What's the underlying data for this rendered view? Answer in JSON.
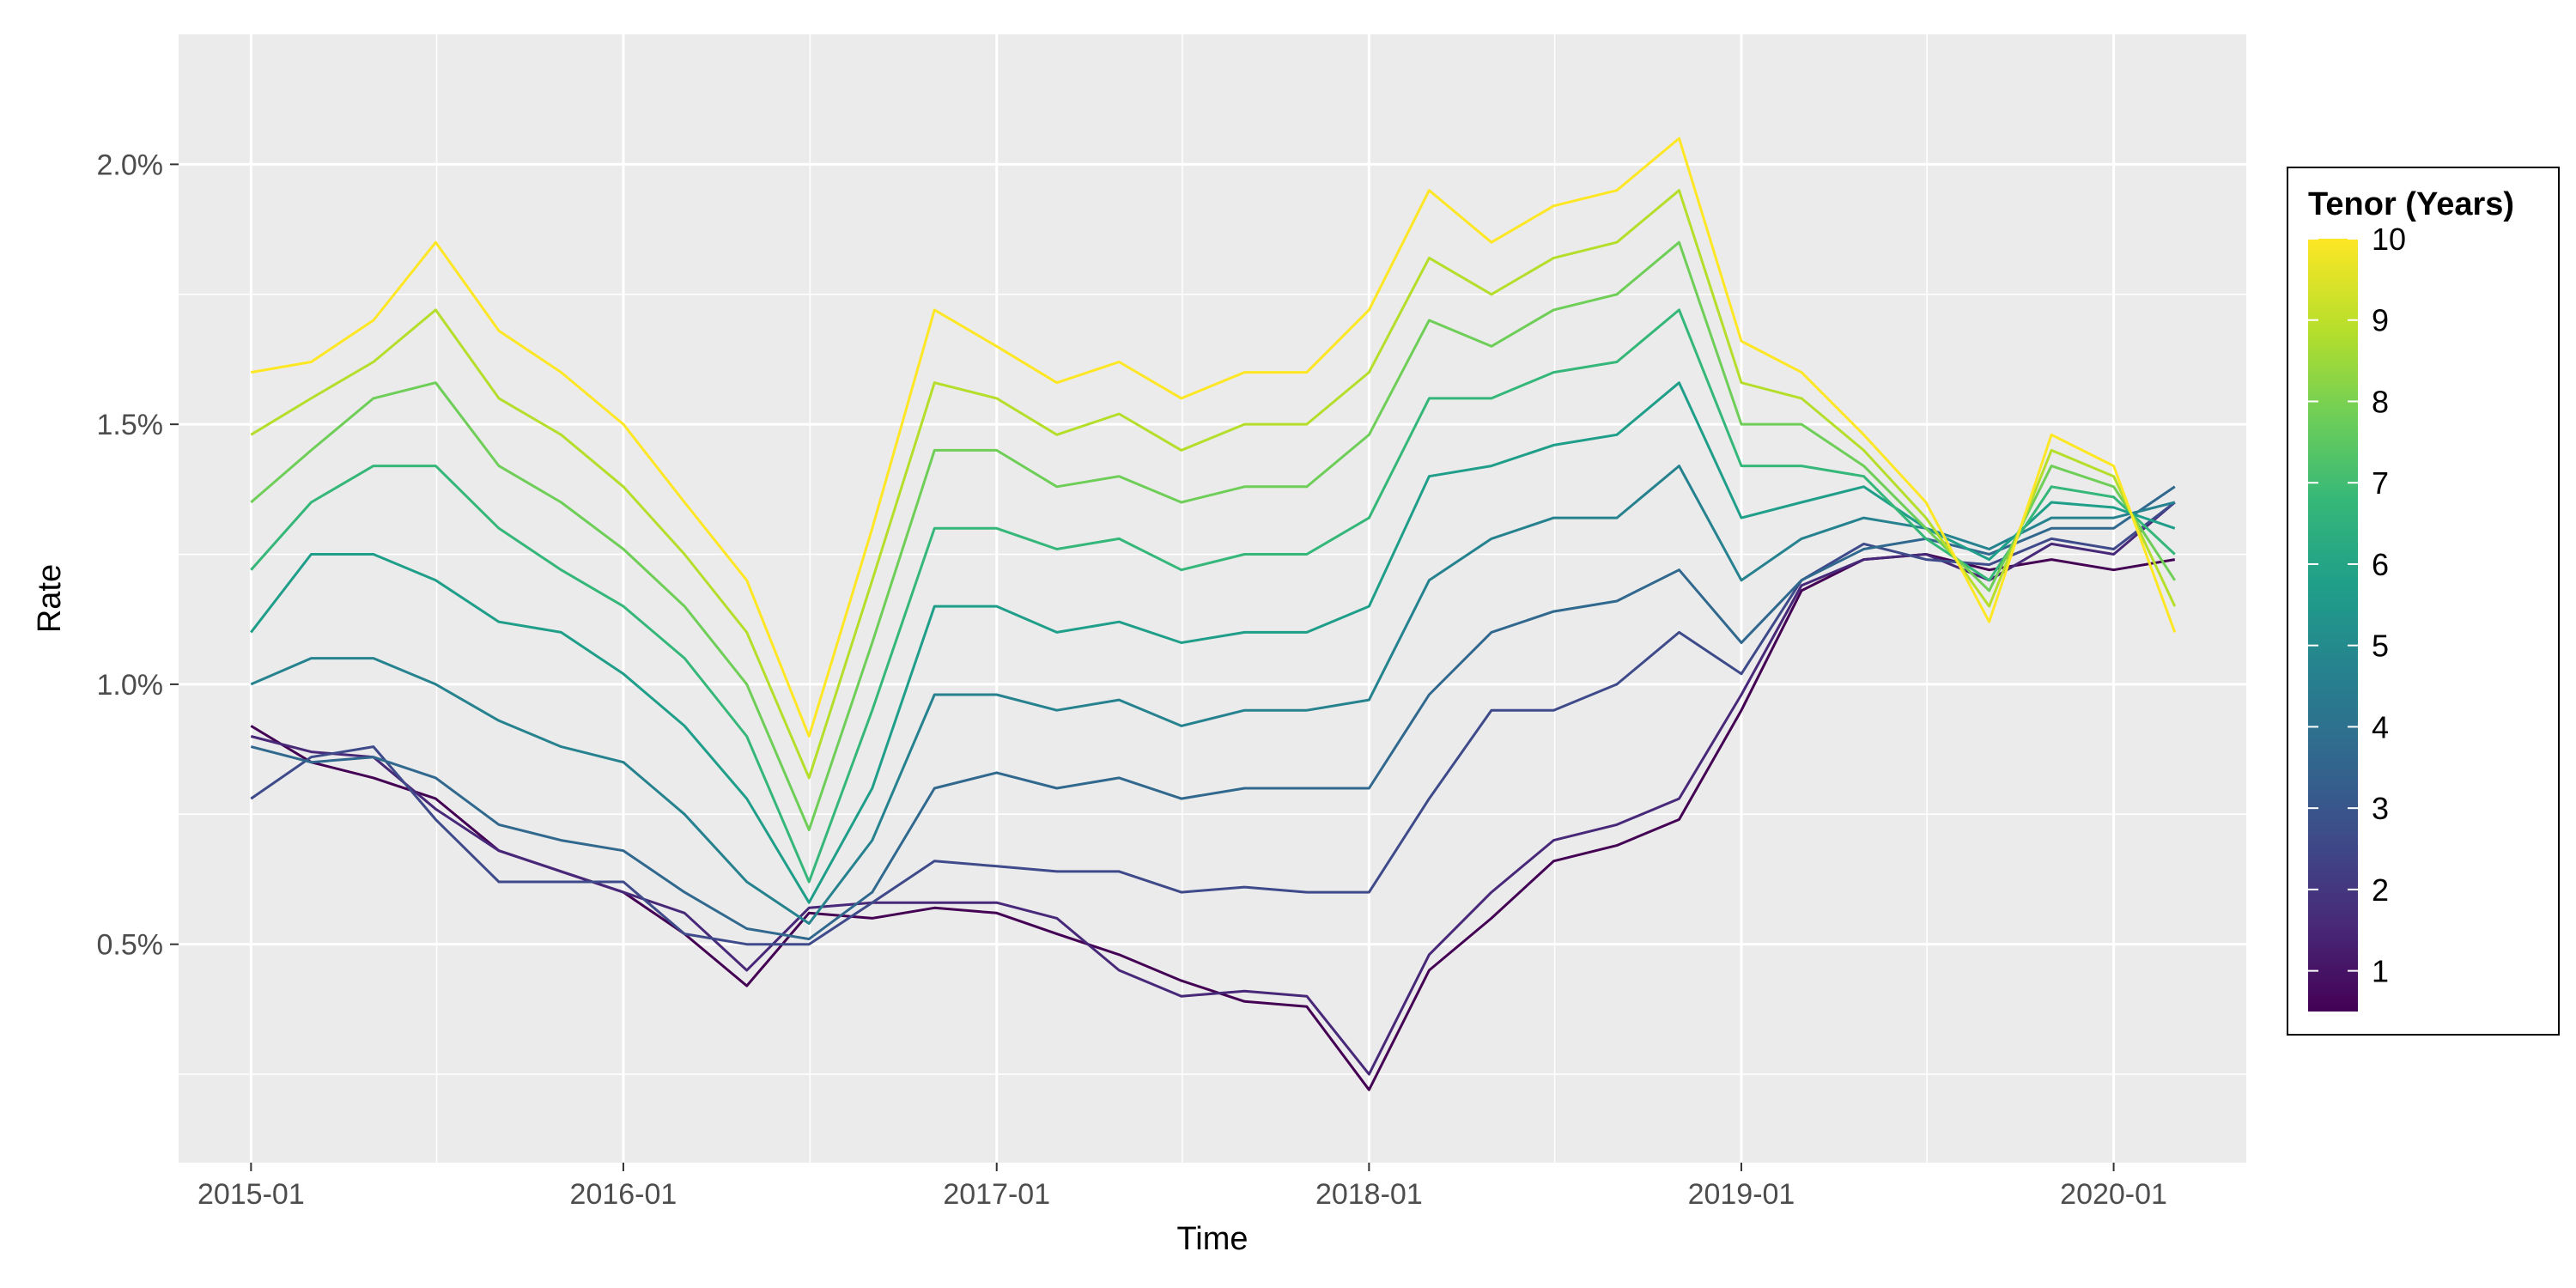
{
  "chart_data": {
    "type": "line",
    "title": "",
    "xlabel": "Time",
    "ylabel": "Rate",
    "x_ticks": [
      "2015-01",
      "2016-01",
      "2017-01",
      "2018-01",
      "2019-01",
      "2020-01"
    ],
    "y_ticks": [
      "0.5%",
      "1.0%",
      "1.5%",
      "2.0%"
    ],
    "xlim": [
      "2014-10-22",
      "2020-05-10"
    ],
    "ylim": [
      0.08,
      2.25
    ],
    "grid": true,
    "legend": {
      "title": "Tenor (Years)",
      "type": "colorbar",
      "position": "right",
      "labels": [
        "10",
        "9",
        "8",
        "7",
        "6",
        "5",
        "4",
        "3",
        "2",
        "1"
      ],
      "range": [
        0.5,
        10
      ]
    },
    "colors": {
      "panel_background": "#ebebeb",
      "gridline": "#ffffff",
      "palette": "viridis"
    },
    "x": [
      "2015-01-01",
      "2015-03-01",
      "2015-05-01",
      "2015-07-01",
      "2015-09-01",
      "2015-11-01",
      "2016-01-01",
      "2016-03-01",
      "2016-05-01",
      "2016-07-01",
      "2016-09-01",
      "2016-11-01",
      "2017-01-01",
      "2017-03-01",
      "2017-05-01",
      "2017-07-01",
      "2017-09-01",
      "2017-11-01",
      "2018-01-01",
      "2018-03-01",
      "2018-05-01",
      "2018-07-01",
      "2018-09-01",
      "2018-11-01",
      "2019-01-01",
      "2019-03-01",
      "2019-05-01",
      "2019-07-01",
      "2019-09-01",
      "2019-11-01",
      "2020-01-01",
      "2020-03-01"
    ],
    "series": [
      {
        "tenor": 1,
        "values": [
          0.92,
          0.85,
          0.82,
          0.78,
          0.68,
          0.64,
          0.6,
          0.52,
          0.42,
          0.56,
          0.55,
          0.57,
          0.56,
          0.52,
          0.48,
          0.43,
          0.39,
          0.38,
          0.22,
          0.45,
          0.55,
          0.66,
          0.69,
          0.74,
          0.95,
          1.18,
          1.24,
          1.25,
          1.22,
          1.24,
          1.22,
          1.24
        ]
      },
      {
        "tenor": 2,
        "values": [
          0.9,
          0.87,
          0.86,
          0.76,
          0.68,
          0.64,
          0.6,
          0.56,
          0.45,
          0.57,
          0.58,
          0.58,
          0.58,
          0.55,
          0.45,
          0.4,
          0.41,
          0.4,
          0.25,
          0.48,
          0.6,
          0.7,
          0.73,
          0.78,
          0.98,
          1.19,
          1.24,
          1.25,
          1.2,
          1.27,
          1.25,
          1.35
        ]
      },
      {
        "tenor": 3,
        "values": [
          0.78,
          0.86,
          0.88,
          0.74,
          0.62,
          0.62,
          0.62,
          0.52,
          0.5,
          0.5,
          0.58,
          0.66,
          0.65,
          0.64,
          0.64,
          0.6,
          0.61,
          0.6,
          0.6,
          0.78,
          0.95,
          0.95,
          1.0,
          1.1,
          1.02,
          1.2,
          1.27,
          1.24,
          1.23,
          1.28,
          1.26,
          1.35
        ]
      },
      {
        "tenor": 4,
        "values": [
          0.88,
          0.85,
          0.86,
          0.82,
          0.73,
          0.7,
          0.68,
          0.6,
          0.53,
          0.51,
          0.6,
          0.8,
          0.83,
          0.8,
          0.82,
          0.78,
          0.8,
          0.8,
          0.8,
          0.98,
          1.1,
          1.14,
          1.16,
          1.22,
          1.08,
          1.2,
          1.26,
          1.28,
          1.25,
          1.3,
          1.3,
          1.38
        ]
      },
      {
        "tenor": 5,
        "values": [
          1.0,
          1.05,
          1.05,
          1.0,
          0.93,
          0.88,
          0.85,
          0.75,
          0.62,
          0.54,
          0.7,
          0.98,
          0.98,
          0.95,
          0.97,
          0.92,
          0.95,
          0.95,
          0.97,
          1.2,
          1.28,
          1.32,
          1.32,
          1.42,
          1.2,
          1.28,
          1.32,
          1.3,
          1.26,
          1.32,
          1.32,
          1.35
        ]
      },
      {
        "tenor": 6,
        "values": [
          1.1,
          1.25,
          1.25,
          1.2,
          1.12,
          1.1,
          1.02,
          0.92,
          0.78,
          0.58,
          0.8,
          1.15,
          1.15,
          1.1,
          1.12,
          1.08,
          1.1,
          1.1,
          1.15,
          1.4,
          1.42,
          1.46,
          1.48,
          1.58,
          1.32,
          1.35,
          1.38,
          1.3,
          1.24,
          1.35,
          1.34,
          1.3
        ]
      },
      {
        "tenor": 7,
        "values": [
          1.22,
          1.35,
          1.42,
          1.42,
          1.3,
          1.22,
          1.15,
          1.05,
          0.9,
          0.62,
          0.95,
          1.3,
          1.3,
          1.26,
          1.28,
          1.22,
          1.25,
          1.25,
          1.32,
          1.55,
          1.55,
          1.6,
          1.62,
          1.72,
          1.42,
          1.42,
          1.4,
          1.28,
          1.2,
          1.38,
          1.36,
          1.25
        ]
      },
      {
        "tenor": 8,
        "values": [
          1.35,
          1.45,
          1.55,
          1.58,
          1.42,
          1.35,
          1.26,
          1.15,
          1.0,
          0.72,
          1.08,
          1.45,
          1.45,
          1.38,
          1.4,
          1.35,
          1.38,
          1.38,
          1.48,
          1.7,
          1.65,
          1.72,
          1.75,
          1.85,
          1.5,
          1.5,
          1.42,
          1.3,
          1.18,
          1.42,
          1.38,
          1.2
        ]
      },
      {
        "tenor": 9,
        "values": [
          1.48,
          1.55,
          1.62,
          1.72,
          1.55,
          1.48,
          1.38,
          1.25,
          1.1,
          0.82,
          1.2,
          1.58,
          1.55,
          1.48,
          1.52,
          1.45,
          1.5,
          1.5,
          1.6,
          1.82,
          1.75,
          1.82,
          1.85,
          1.95,
          1.58,
          1.55,
          1.45,
          1.32,
          1.15,
          1.45,
          1.4,
          1.15
        ]
      },
      {
        "tenor": 10,
        "values": [
          1.6,
          1.62,
          1.7,
          1.85,
          1.68,
          1.6,
          1.5,
          1.35,
          1.2,
          0.9,
          1.3,
          1.72,
          1.65,
          1.58,
          1.62,
          1.55,
          1.6,
          1.6,
          1.72,
          1.95,
          1.85,
          1.92,
          1.95,
          2.05,
          1.66,
          1.6,
          1.48,
          1.35,
          1.12,
          1.48,
          1.42,
          1.1
        ]
      }
    ]
  }
}
